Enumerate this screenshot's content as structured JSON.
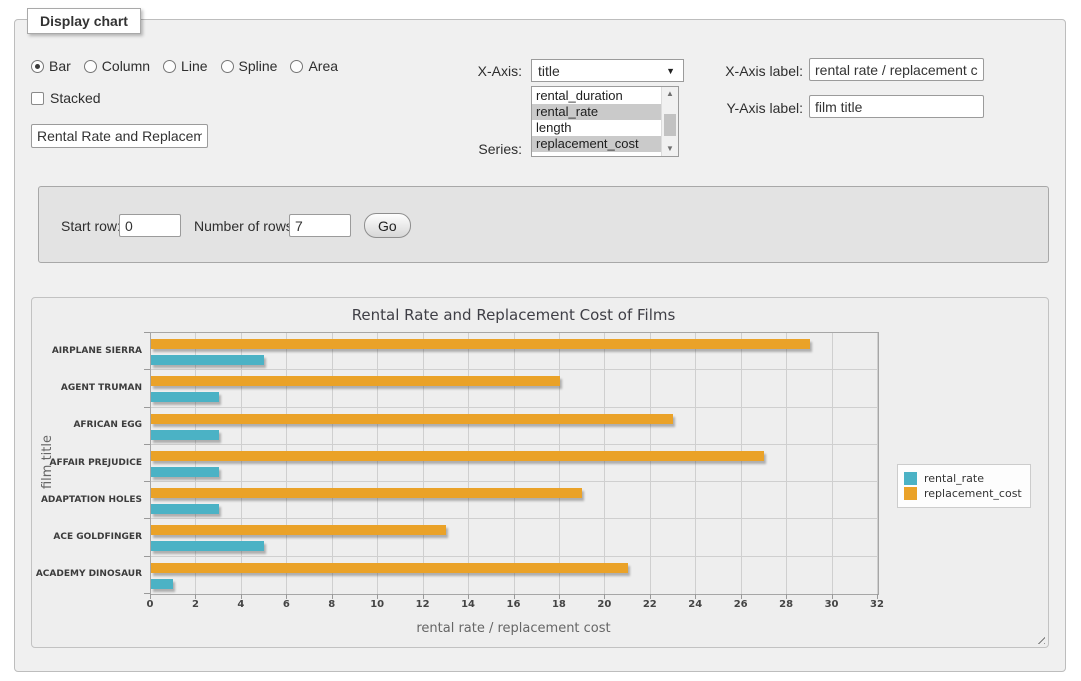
{
  "window": {
    "legend": "Display chart"
  },
  "controls": {
    "chart_types": [
      {
        "label": "Bar",
        "selected": true
      },
      {
        "label": "Column",
        "selected": false
      },
      {
        "label": "Line",
        "selected": false
      },
      {
        "label": "Spline",
        "selected": false
      },
      {
        "label": "Area",
        "selected": false
      }
    ],
    "stacked_label": "Stacked",
    "stacked_checked": false,
    "title_value": "Rental Rate and Replacement Cost of Films",
    "x_axis_label_text": "X-Axis:",
    "x_axis_selected": "title",
    "series_label_text": "Series:",
    "series_options": [
      {
        "label": "rental_duration",
        "selected": false
      },
      {
        "label": "rental_rate",
        "selected": true
      },
      {
        "label": "length",
        "selected": false
      },
      {
        "label": "replacement_cost",
        "selected": true
      }
    ],
    "x_axis_label_field": {
      "label": "X-Axis label:",
      "value": "rental rate / replacement cost"
    },
    "y_axis_label_field": {
      "label": "Y-Axis label:",
      "value": "film title"
    }
  },
  "row_controls": {
    "start_row_label": "Start row:",
    "start_row_value": "0",
    "num_rows_label": "Number of rows:",
    "num_rows_value": "7",
    "go_label": "Go"
  },
  "chart_data": {
    "type": "bar",
    "orientation": "horizontal",
    "title": "Rental Rate and Replacement Cost of Films",
    "xlabel": "rental rate / replacement cost",
    "ylabel": "film title",
    "categories": [
      "AIRPLANE SIERRA",
      "AGENT TRUMAN",
      "AFRICAN EGG",
      "AFFAIR PREJUDICE",
      "ADAPTATION HOLES",
      "ACE GOLDFINGER",
      "ACADEMY DINOSAUR"
    ],
    "series": [
      {
        "name": "rental_rate",
        "color": "#4bb2c5",
        "values": [
          4.99,
          2.99,
          2.99,
          2.99,
          2.99,
          4.99,
          0.99
        ]
      },
      {
        "name": "replacement_cost",
        "color": "#eaa228",
        "values": [
          28.99,
          17.99,
          22.99,
          26.99,
          18.99,
          12.99,
          20.99
        ]
      }
    ],
    "xlim": [
      0,
      32
    ],
    "xticks": [
      0,
      2,
      4,
      6,
      8,
      10,
      12,
      14,
      16,
      18,
      20,
      22,
      24,
      26,
      28,
      30,
      32
    ],
    "grid": true,
    "legend_position": "right",
    "bar_order_in_band": [
      "replacement_cost",
      "rental_rate"
    ]
  }
}
